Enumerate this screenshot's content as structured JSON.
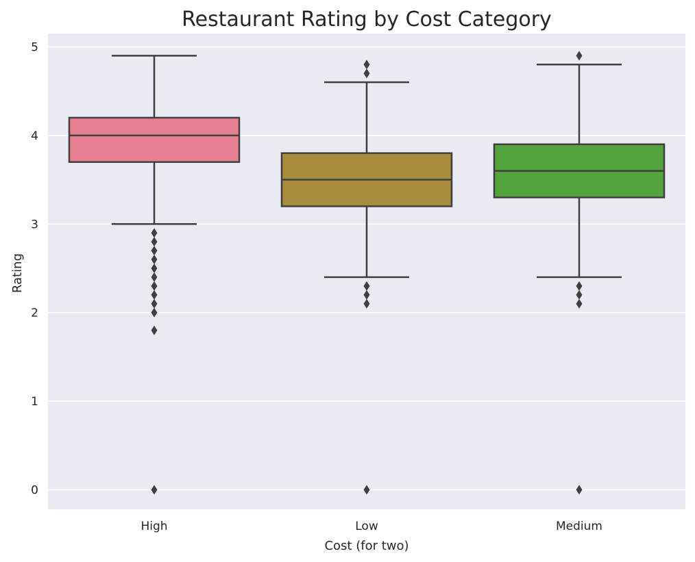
{
  "chart_data": {
    "type": "box",
    "title": "Restaurant Rating by Cost Category",
    "xlabel": "Cost (for two)",
    "ylabel": "Rating",
    "ylim": [
      -0.22,
      5.15
    ],
    "yticks": [
      0,
      1,
      2,
      3,
      4,
      5
    ],
    "grid": true,
    "categories": [
      "High",
      "Low",
      "Medium"
    ],
    "boxes": [
      {
        "category": "High",
        "color": "#e88093",
        "whisker_low": 3.0,
        "q1": 3.7,
        "median": 4.0,
        "q3": 4.2,
        "whisker_high": 4.9,
        "outliers": [
          2.9,
          2.8,
          2.7,
          2.6,
          2.5,
          2.4,
          2.3,
          2.2,
          2.1,
          2.0,
          1.8,
          0
        ]
      },
      {
        "category": "Low",
        "color": "#a88b3d",
        "whisker_low": 2.4,
        "q1": 3.2,
        "median": 3.5,
        "q3": 3.8,
        "whisker_high": 4.6,
        "outliers": [
          4.7,
          4.8,
          2.3,
          2.2,
          2.1,
          0
        ]
      },
      {
        "category": "Medium",
        "color": "#55a33f",
        "whisker_low": 2.4,
        "q1": 3.3,
        "median": 3.6,
        "q3": 3.9,
        "whisker_high": 4.8,
        "outliers": [
          4.9,
          2.3,
          2.2,
          2.1,
          0
        ]
      }
    ]
  },
  "colors": {
    "plot_background": "#eaeaf2",
    "grid": "#ffffff",
    "box_line": "#3f3f3f",
    "text": "#262626"
  }
}
